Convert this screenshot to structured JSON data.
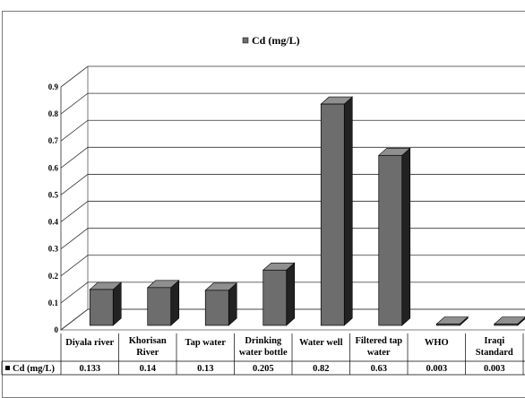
{
  "chart_data": {
    "type": "bar",
    "series": [
      {
        "name": "Cd (mg/L)",
        "values": [
          0.133,
          0.14,
          0.13,
          0.205,
          0.82,
          0.63,
          0.003,
          0.003
        ],
        "color": "#6d6d6d"
      }
    ],
    "categories": [
      [
        "Diyala river"
      ],
      [
        "Khorisan",
        "River"
      ],
      [
        "Tap water"
      ],
      [
        "Drinking",
        "water bottle"
      ],
      [
        "Water well"
      ],
      [
        "Filtered tap",
        "water"
      ],
      [
        "WHO"
      ],
      [
        "Iraqi",
        "Standard"
      ]
    ],
    "data_table_labels": [
      "0.133",
      "0.14",
      "0.13",
      "0.205",
      "0.82",
      "0.63",
      "0.003",
      "0.003"
    ],
    "yticks": [
      "0",
      "0.1",
      "0.2",
      "0.3",
      "0.4",
      "0.5",
      "0.6",
      "0.7",
      "0.8",
      "0.9"
    ],
    "ylim": [
      0,
      0.9
    ],
    "legend_position": "top",
    "gridlines": true,
    "style": "3d-column with data table"
  }
}
